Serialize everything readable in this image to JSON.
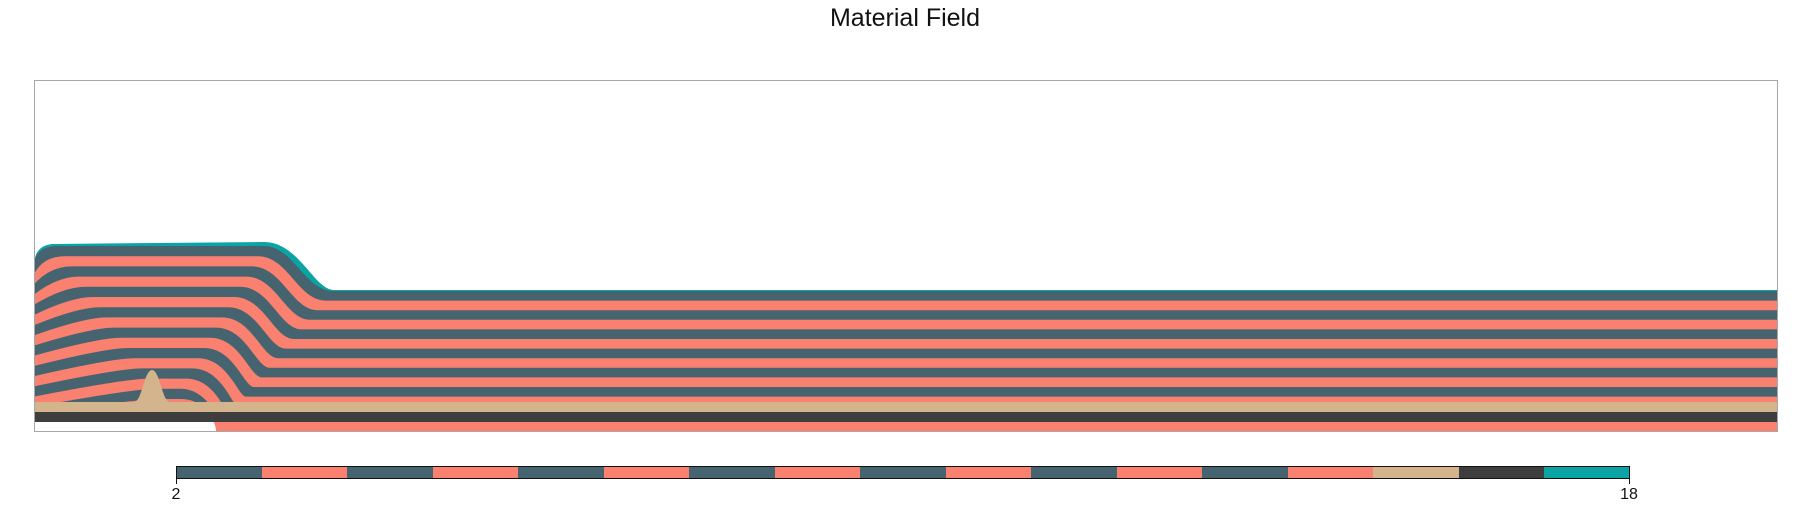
{
  "chart_data": {
    "type": "heatmap",
    "title": "Material Field",
    "xlabel": "",
    "ylabel": "",
    "grid": false,
    "legend": "colorbar-bottom",
    "colorbar": {
      "min": 2,
      "max": 18,
      "min_label": "2",
      "max_label": "18",
      "segment_colors": [
        "#466470",
        "#fa8170",
        "#466470",
        "#fa8170",
        "#466470",
        "#fa8170",
        "#466470",
        "#fa8170",
        "#466470",
        "#fa8170",
        "#466470",
        "#fa8170",
        "#466470",
        "#fa8170",
        "#d4b48c",
        "#3e3e3e",
        "#0aa4a4"
      ]
    },
    "layers": [
      {
        "material": "dark base",
        "color": "#3e3e3e"
      },
      {
        "material": "tan base",
        "color": "#d4b48c"
      },
      {
        "material": "alternating strata",
        "colors": [
          "#fa8170",
          "#466470"
        ],
        "count": 14
      },
      {
        "material": "teal front",
        "color": "#0aa4a4"
      }
    ]
  }
}
